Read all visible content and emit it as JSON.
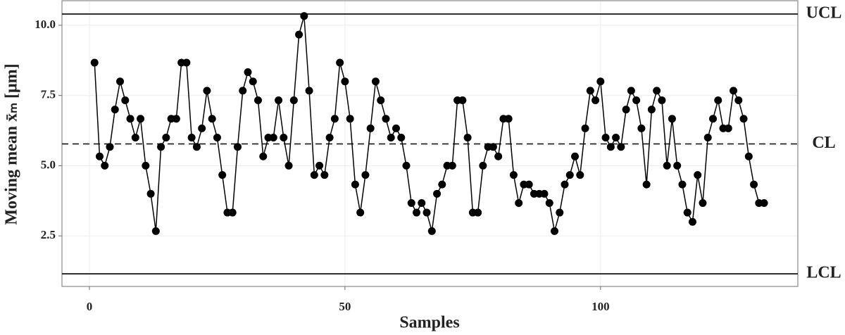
{
  "chart_data": {
    "type": "line",
    "x_label": "Samples",
    "y_label": "Moving mean x̄ₘ [μm]",
    "xlim": [
      -5.37,
      138.6
    ],
    "ylim": [
      0.7,
      10.875
    ],
    "xticks": [
      0,
      50,
      100
    ],
    "yticks": [
      2.5,
      {
        "value": 5,
        "label": "5.0"
      },
      7.5,
      {
        "value": 10,
        "label": "10.0"
      }
    ],
    "grid": true,
    "color": "#000000",
    "reference_lines": [
      {
        "label": "UCL",
        "value": 10.4,
        "style": "solid"
      },
      {
        "label": "CL",
        "value": 5.775,
        "style": "dashed"
      },
      {
        "label": "LCL",
        "value": 1.15,
        "style": "solid"
      }
    ],
    "x": [
      1,
      2,
      3,
      4,
      5,
      6,
      7,
      8,
      9,
      10,
      11,
      12,
      13,
      14,
      15,
      16,
      17,
      18,
      19,
      20,
      21,
      22,
      23,
      24,
      25,
      26,
      27,
      28,
      29,
      30,
      31,
      32,
      33,
      34,
      35,
      36,
      37,
      38,
      39,
      40,
      41,
      42,
      43,
      44,
      45,
      46,
      47,
      48,
      49,
      50,
      51,
      52,
      53,
      54,
      55,
      56,
      57,
      58,
      59,
      60,
      61,
      62,
      63,
      64,
      65,
      66,
      67,
      68,
      69,
      70,
      71,
      72,
      73,
      74,
      75,
      76,
      77,
      78,
      79,
      80,
      81,
      82,
      83,
      84,
      85,
      86,
      87,
      88,
      89,
      90,
      91,
      92,
      93,
      94,
      95,
      96,
      97,
      98,
      99,
      100,
      101,
      102,
      103,
      104,
      105,
      106,
      107,
      108,
      109,
      110,
      111,
      112,
      113,
      114,
      115,
      116,
      117,
      118,
      119,
      120,
      121,
      122,
      123,
      124,
      125,
      126,
      127,
      128,
      129,
      130,
      131,
      132
    ],
    "values": [
      8.67,
      5.33,
      5.0,
      5.67,
      7.0,
      8.0,
      7.33,
      6.67,
      6.0,
      6.67,
      5.0,
      4.0,
      2.67,
      5.67,
      6.0,
      6.67,
      6.67,
      8.67,
      8.67,
      6.0,
      5.67,
      6.33,
      7.67,
      6.67,
      6.0,
      4.67,
      3.33,
      3.33,
      5.67,
      7.67,
      8.33,
      8.0,
      7.33,
      5.33,
      6.0,
      6.0,
      7.33,
      6.0,
      5.0,
      7.33,
      9.67,
      10.33,
      7.67,
      4.67,
      5.0,
      4.67,
      6.0,
      6.67,
      8.67,
      8.0,
      6.67,
      4.33,
      3.33,
      4.67,
      6.33,
      8.0,
      7.33,
      6.67,
      6.0,
      6.33,
      6.0,
      5.0,
      3.67,
      3.33,
      3.67,
      3.33,
      2.67,
      4.0,
      4.33,
      5.0,
      5.0,
      7.33,
      7.33,
      6.0,
      3.33,
      3.33,
      5.0,
      5.67,
      5.67,
      5.33,
      6.67,
      6.67,
      4.67,
      3.67,
      4.33,
      4.33,
      4.0,
      4.0,
      4.0,
      3.67,
      2.67,
      3.33,
      4.33,
      4.67,
      5.33,
      4.67,
      6.33,
      7.67,
      7.33,
      8.0,
      6.0,
      5.67,
      6.0,
      5.67,
      7.0,
      7.67,
      7.33,
      6.33,
      4.33,
      7.0,
      7.67,
      7.33,
      5.0,
      6.67,
      5.0,
      4.33,
      3.33,
      3.0,
      4.67,
      3.67,
      6.0,
      6.67,
      7.33,
      6.33,
      6.33,
      7.67,
      7.33,
      6.67,
      5.33,
      4.33,
      3.67,
      3.67
    ]
  }
}
